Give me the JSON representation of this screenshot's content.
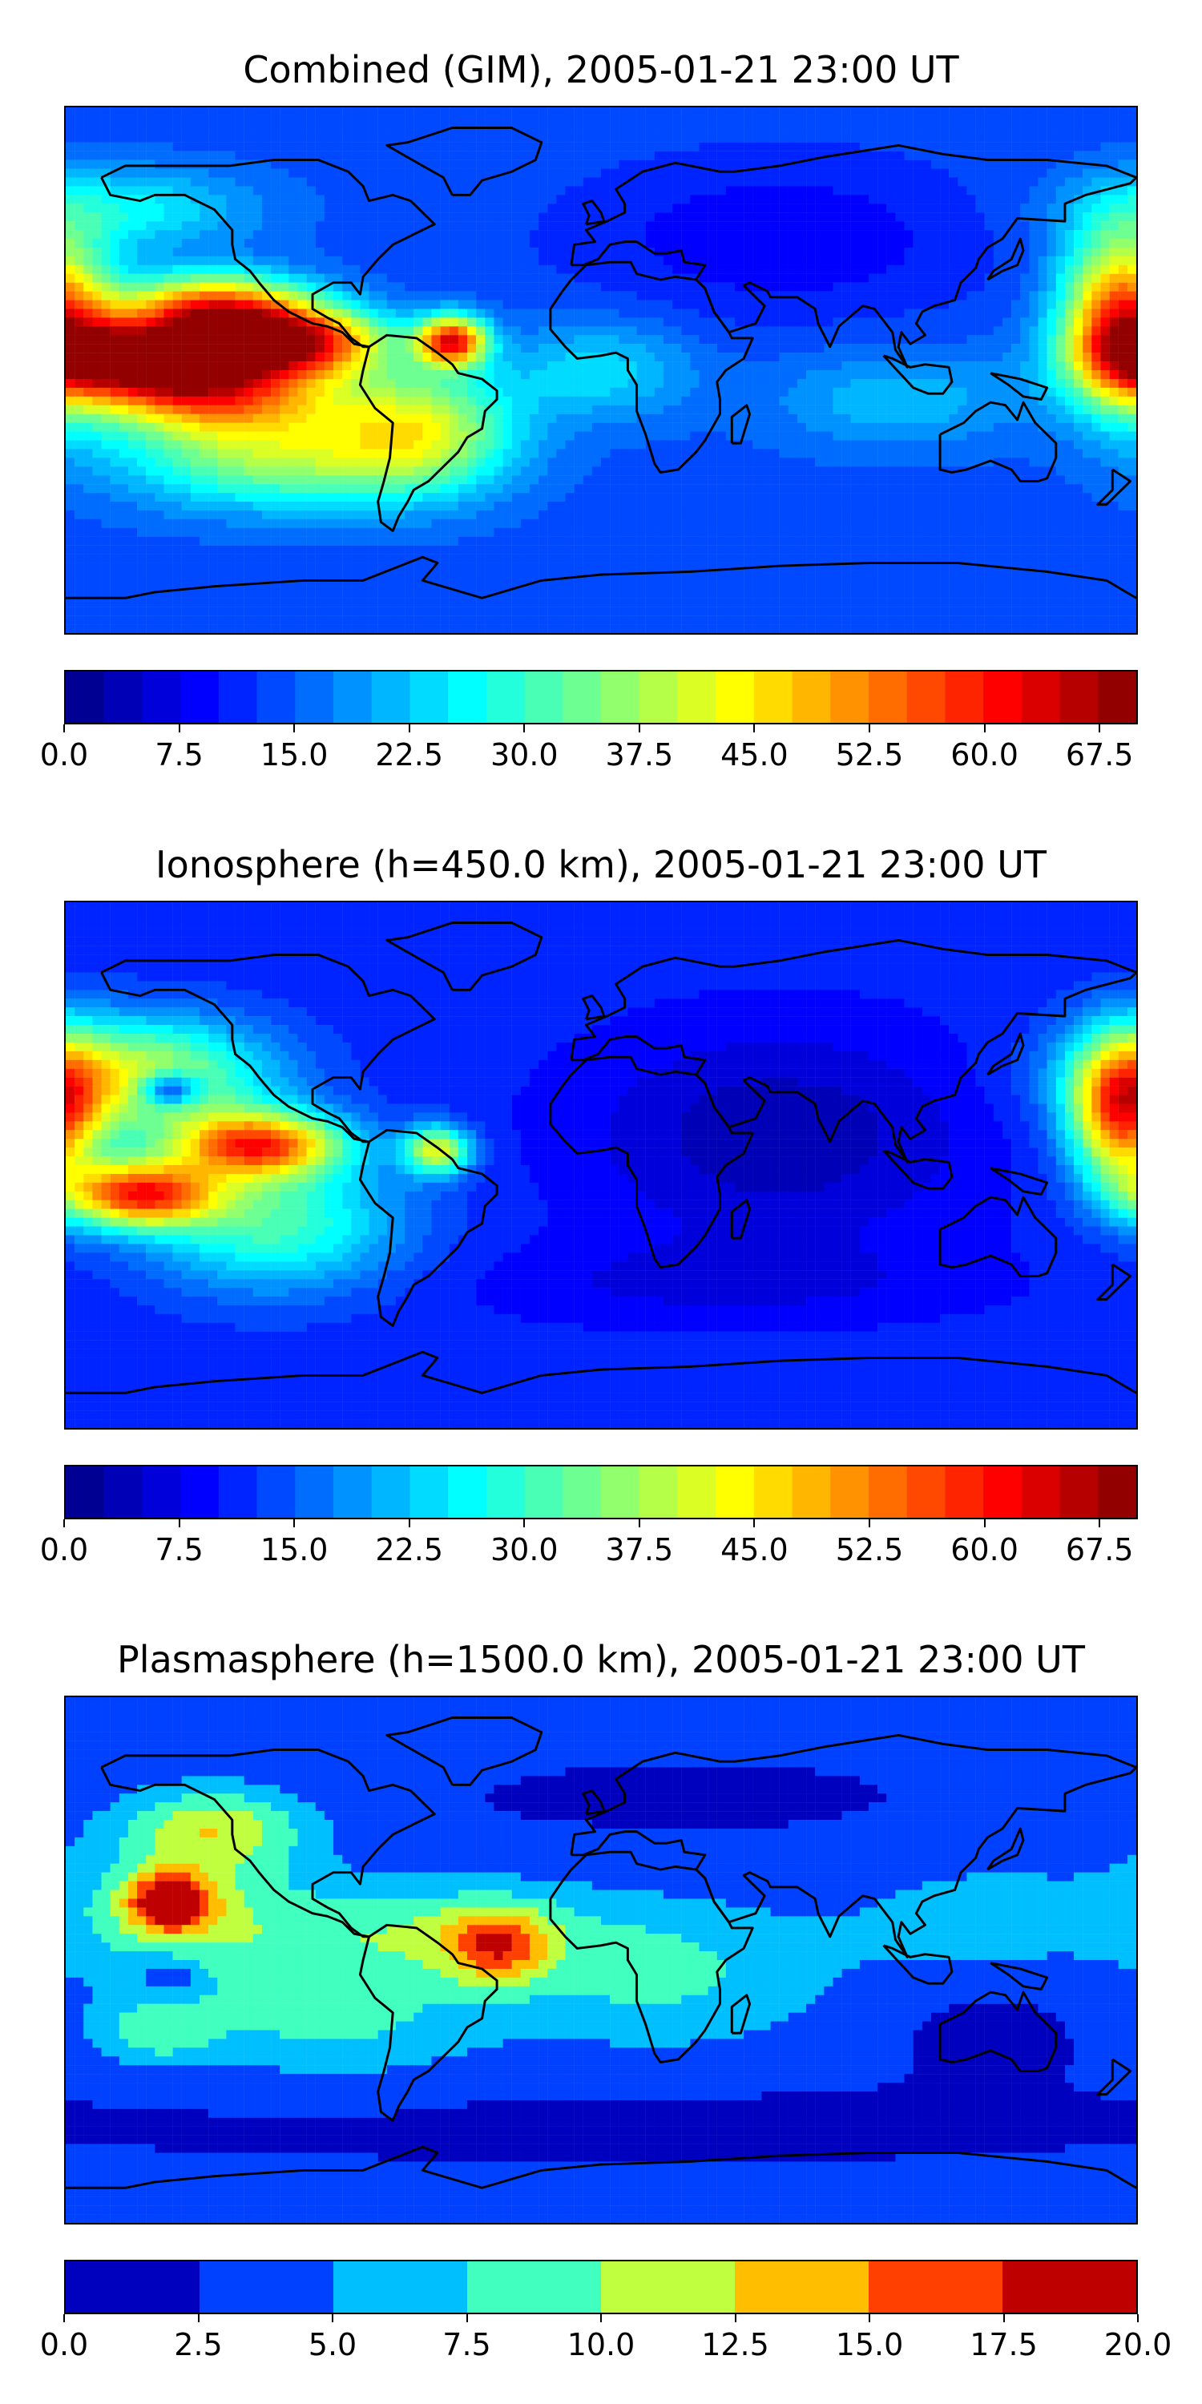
{
  "chart_data": [
    {
      "type": "heatmap",
      "title": "Combined (GIM), 2005-01-21 23:00 UT",
      "map": "world-equirectangular",
      "colorbar": {
        "min": 0.0,
        "max": 70.0,
        "levels": 28,
        "step": 2.5,
        "tick_labels": [
          "0.0",
          "7.5",
          "15.0",
          "22.5",
          "30.0",
          "37.5",
          "45.0",
          "52.5",
          "60.0",
          "67.5"
        ],
        "tick_values": [
          0.0,
          7.5,
          15.0,
          22.5,
          30.0,
          37.5,
          45.0,
          52.5,
          60.0,
          67.5
        ]
      },
      "background_value": 14,
      "features": [
        {
          "lon": -155,
          "lat": 5,
          "sx": 25,
          "sy": 9,
          "value": 50
        },
        {
          "lon": -105,
          "lat": 10,
          "sx": 22,
          "sy": 8,
          "value": 48
        },
        {
          "lon": -130,
          "lat": 22,
          "sx": 22,
          "sy": 8,
          "value": 37
        },
        {
          "lon": -130,
          "lat": -8,
          "sx": 30,
          "sy": 10,
          "value": 36
        },
        {
          "lon": -50,
          "lat": 10,
          "sx": 8,
          "sy": 6,
          "value": 45
        },
        {
          "lon": -110,
          "lat": -30,
          "sx": 35,
          "sy": 12,
          "value": 22
        },
        {
          "lon": -60,
          "lat": -20,
          "sx": 22,
          "sy": 15,
          "value": 24
        },
        {
          "lon": 175,
          "lat": 18,
          "sx": 14,
          "sy": 20,
          "value": 42
        },
        {
          "lon": 0,
          "lat": 0,
          "sx": 22,
          "sy": 12,
          "value": 10
        },
        {
          "lon": 100,
          "lat": -10,
          "sx": 30,
          "sy": 12,
          "value": 8
        },
        {
          "lon": 60,
          "lat": 45,
          "sx": 50,
          "sy": 20,
          "value": -6
        },
        {
          "lon": -160,
          "lat": 55,
          "sx": 30,
          "sy": 10,
          "value": 12
        }
      ]
    },
    {
      "type": "heatmap",
      "title": "Ionosphere  (h=450.0 km), 2005-01-21 23:00 UT",
      "map": "world-equirectangular",
      "colorbar": {
        "min": 0.0,
        "max": 70.0,
        "levels": 28,
        "step": 2.5,
        "tick_labels": [
          "0.0",
          "7.5",
          "15.0",
          "22.5",
          "30.0",
          "37.5",
          "45.0",
          "52.5",
          "60.0",
          "67.5"
        ],
        "tick_values": [
          0.0,
          7.5,
          15.0,
          22.5,
          30.0,
          37.5,
          45.0,
          52.5,
          60.0,
          67.5
        ]
      },
      "background_value": 11,
      "features": [
        {
          "lon": -155,
          "lat": -10,
          "sx": 18,
          "sy": 8,
          "value": 44
        },
        {
          "lon": -115,
          "lat": 7,
          "sx": 20,
          "sy": 8,
          "value": 42
        },
        {
          "lon": -155,
          "lat": 30,
          "sx": 30,
          "sy": 14,
          "value": 30
        },
        {
          "lon": -145,
          "lat": 26,
          "sx": 7,
          "sy": 4,
          "value": -24
        },
        {
          "lon": -55,
          "lat": 5,
          "sx": 8,
          "sy": 6,
          "value": 30
        },
        {
          "lon": -110,
          "lat": -20,
          "sx": 30,
          "sy": 16,
          "value": 20
        },
        {
          "lon": 175,
          "lat": 18,
          "sx": 12,
          "sy": 18,
          "value": 40
        },
        {
          "lon": 60,
          "lat": 10,
          "sx": 45,
          "sy": 25,
          "value": -8
        },
        {
          "lon": 40,
          "lat": -40,
          "sx": 60,
          "sy": 10,
          "value": -4
        }
      ]
    },
    {
      "type": "heatmap",
      "title": "Plasmasphere (h=1500.0 km), 2005-01-21 23:00 UT",
      "map": "world-equirectangular",
      "colorbar": {
        "min": 0.0,
        "max": 20.0,
        "levels": 8,
        "step": 2.5,
        "tick_labels": [
          "0.0",
          "2.5",
          "5.0",
          "7.5",
          "10.0",
          "12.5",
          "15.0",
          "17.5",
          "20.0"
        ],
        "tick_values": [
          0.0,
          2.5,
          5.0,
          7.5,
          10.0,
          12.5,
          15.0,
          17.5,
          20.0
        ]
      },
      "background_value": 3,
      "features": [
        {
          "lon": -145,
          "lat": 20,
          "sx": 10,
          "sy": 7,
          "value": 14
        },
        {
          "lon": -140,
          "lat": 15,
          "sx": 30,
          "sy": 18,
          "value": 6
        },
        {
          "lon": -130,
          "lat": 45,
          "sx": 22,
          "sy": 10,
          "value": 8
        },
        {
          "lon": -35,
          "lat": 5,
          "sx": 12,
          "sy": 9,
          "value": 9
        },
        {
          "lon": -60,
          "lat": 10,
          "sx": 40,
          "sy": 12,
          "value": 6
        },
        {
          "lon": -90,
          "lat": -20,
          "sx": 35,
          "sy": 15,
          "value": 5
        },
        {
          "lon": -150,
          "lat": -25,
          "sx": 15,
          "sy": 8,
          "value": 5
        },
        {
          "lon": -145,
          "lat": -5,
          "sx": 8,
          "sy": 5,
          "value": -4
        },
        {
          "lon": 20,
          "lat": -5,
          "sx": 40,
          "sy": 18,
          "value": 5
        },
        {
          "lon": 130,
          "lat": 15,
          "sx": 35,
          "sy": 15,
          "value": 3
        },
        {
          "lon": 130,
          "lat": -25,
          "sx": 18,
          "sy": 10,
          "value": -2
        },
        {
          "lon": 0,
          "lat": -55,
          "sx": 180,
          "sy": 12,
          "value": -1
        },
        {
          "lon": 30,
          "lat": 55,
          "sx": 60,
          "sy": 10,
          "value": -1
        }
      ]
    }
  ]
}
